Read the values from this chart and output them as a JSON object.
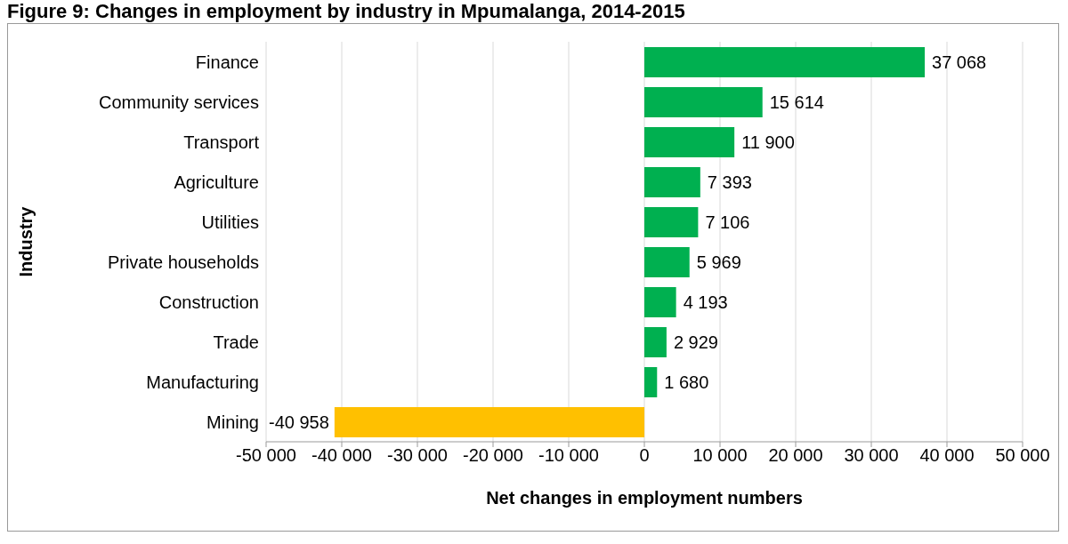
{
  "chart_data": {
    "type": "bar",
    "orientation": "horizontal",
    "title": "Figure 9: Changes in employment by industry in Mpumalanga, 2014-2015",
    "xlabel": "Net changes in employment numbers",
    "ylabel": "Industry",
    "categories": [
      "Finance",
      "Community services",
      "Transport",
      "Agriculture",
      "Utilities",
      "Private households",
      "Construction",
      "Trade",
      "Manufacturing",
      "Mining"
    ],
    "values": [
      37068,
      15614,
      11900,
      7393,
      7106,
      5969,
      4193,
      2929,
      1680,
      -40958
    ],
    "colors": [
      "#00b050",
      "#00b050",
      "#00b050",
      "#00b050",
      "#00b050",
      "#00b050",
      "#00b050",
      "#00b050",
      "#00b050",
      "#ffc000"
    ],
    "value_labels": [
      "37 068",
      "15 614",
      "11 900",
      "7 393",
      "7 106",
      "5 969",
      "4 193",
      "2 929",
      "1 680",
      "-40 958"
    ],
    "xlim": [
      -50000,
      50000
    ],
    "xticks": [
      {
        "value": -50000,
        "label": "-50 000"
      },
      {
        "value": -40000,
        "label": "-40 000"
      },
      {
        "value": -30000,
        "label": "-30 000"
      },
      {
        "value": -20000,
        "label": "-20 000"
      },
      {
        "value": -10000,
        "label": "-10 000"
      },
      0,
      {
        "value": 10000,
        "label": "10 000"
      },
      {
        "value": 20000,
        "label": "20 000"
      },
      {
        "value": 30000,
        "label": "30 000"
      },
      {
        "value": 40000,
        "label": "40 000"
      },
      {
        "value": 50000,
        "label": "50 000"
      }
    ],
    "grid": "x"
  }
}
